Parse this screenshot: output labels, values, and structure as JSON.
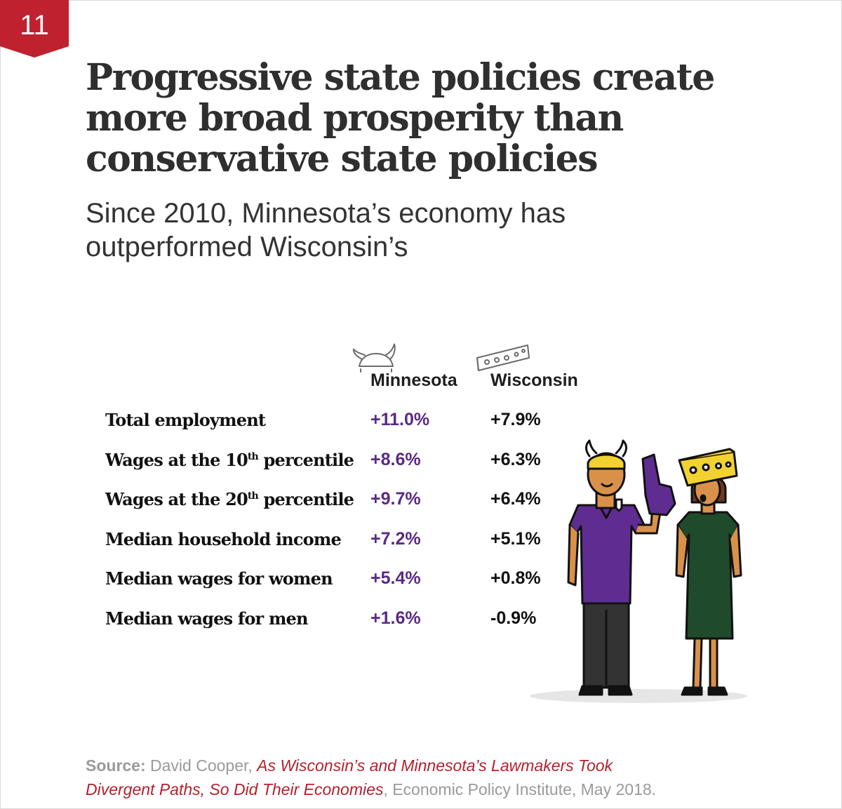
{
  "badge": {
    "number": "11",
    "color": "#c0212f"
  },
  "title": "Progressive state policies create more broad prosperity than conservative state policies",
  "subtitle": "Since 2010, Minnesota’s economy has outperformed Wisconsin’s",
  "chart_data": {
    "type": "table",
    "columns": [
      {
        "name": "Minnesota",
        "icon": "viking-helmet-icon",
        "color": "#5a2a82"
      },
      {
        "name": "Wisconsin",
        "icon": "cheese-wedge-icon",
        "color": "#111111"
      }
    ],
    "rows": [
      {
        "label": "Total employment",
        "label_sup": "",
        "label_tail": "",
        "mn": "+11.0%",
        "wi": "+7.9%"
      },
      {
        "label": "Wages at the 10",
        "label_sup": "th",
        "label_tail": " percentile",
        "mn": "+8.6%",
        "wi": "+6.3%"
      },
      {
        "label": "Wages at the 20",
        "label_sup": "th",
        "label_tail": " percentile",
        "mn": "+9.7%",
        "wi": "+6.4%"
      },
      {
        "label": "Median household income",
        "label_sup": "",
        "label_tail": "",
        "mn": "+7.2%",
        "wi": "+5.1%"
      },
      {
        "label": "Median wages for women",
        "label_sup": "",
        "label_tail": "",
        "mn": "+5.4%",
        "wi": "+0.8%"
      },
      {
        "label": "Median wages for men",
        "label_sup": "",
        "label_tail": "",
        "mn": "+1.6%",
        "wi": "-0.9%"
      }
    ]
  },
  "illustration": {
    "name": "minnesota-and-wisconsin-fans"
  },
  "source": {
    "label": "Source:",
    "author": " David Cooper, ",
    "title_line1": "As Wisconsin’s and Minnesota’s Lawmakers Took",
    "title_line2": "Divergent Paths, So Did Their Economies",
    "publisher": ", Economic Policy Institute, May 2018."
  }
}
